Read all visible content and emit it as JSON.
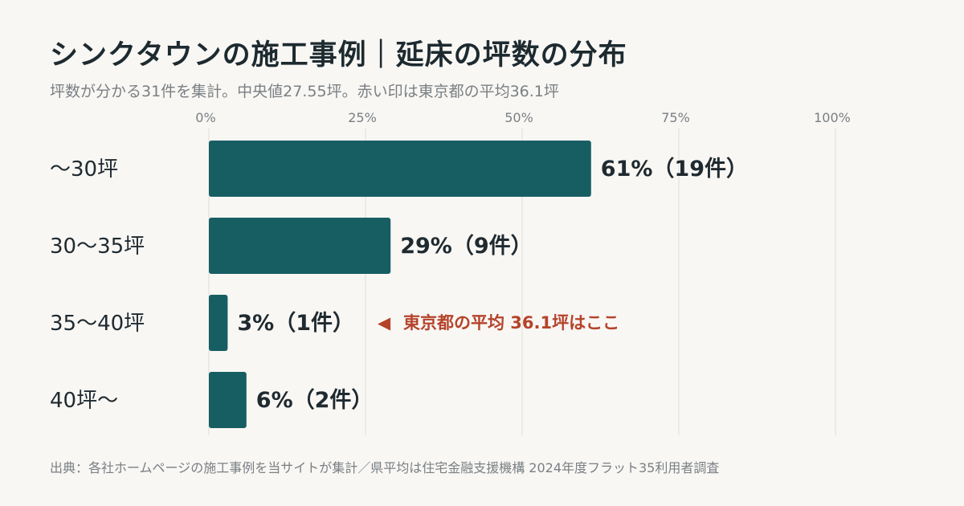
{
  "header": {
    "title": "シンクタウンの施工事例｜延床の坪数の分布",
    "subtitle": "坪数が分かる31件を集計。中央値27.55坪。赤い印は東京都の平均36.1坪"
  },
  "footer": {
    "source": "出典：各社ホームページの施工事例を当サイトが集計／県平均は住宅金融支援機構 2024年度フラット35利用者調査"
  },
  "colors": {
    "bar": "#175e63",
    "grid": "#dcdcd8",
    "annotation": "#b5432a"
  },
  "chart_data": {
    "type": "bar",
    "orientation": "horizontal",
    "categories": [
      "〜30坪",
      "30〜35坪",
      "35〜40坪",
      "40坪〜"
    ],
    "values": [
      61,
      29,
      3,
      6
    ],
    "data_labels": [
      "61%（19件）",
      "29%（9件）",
      "3%（1件）",
      "6%（2件）"
    ],
    "xlim": [
      0,
      100
    ],
    "xticks": [
      0,
      25,
      50,
      75,
      100
    ],
    "xtick_labels": [
      "0%",
      "25%",
      "50%",
      "75%",
      "100%"
    ],
    "grid": true,
    "annotation": {
      "category_index": 2,
      "marker": "◀",
      "text": "東京都の平均 36.1坪はここ"
    }
  }
}
